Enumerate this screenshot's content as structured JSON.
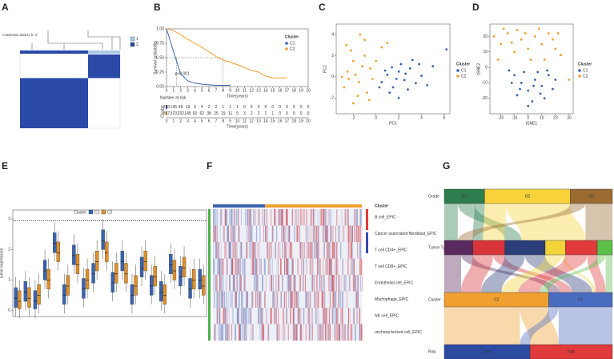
{
  "chart_data": [
    {
      "type": "heatmap",
      "panel": "A",
      "title": "consensus matrix k=2",
      "groups": [
        {
          "name": "1",
          "size": 32,
          "color": "#a9c8e8"
        },
        {
          "name": "2",
          "size": 68,
          "color": "#2b4aa8"
        }
      ],
      "matrix": [
        [
          1,
          0
        ],
        [
          0,
          1
        ]
      ]
    },
    {
      "type": "line",
      "panel": "B",
      "ylabel": "Survival probability",
      "xlabel": "Time(years)",
      "legend_title": "Cluster",
      "annotation": "p<0.001",
      "series": [
        {
          "name": "C1",
          "color": "#3a64b0",
          "x": [
            0,
            1,
            2,
            3,
            4,
            5,
            6,
            7,
            8,
            9
          ],
          "y": [
            1,
            0.6,
            0.22,
            0.1,
            0.06,
            0.04,
            0.03,
            0.02,
            0.02,
            0.02
          ]
        },
        {
          "name": "C2",
          "color": "#f0a030",
          "x": [
            0,
            1,
            2,
            3,
            4,
            5,
            6,
            7,
            8,
            9,
            10,
            11,
            12,
            13,
            14,
            15,
            16,
            17
          ],
          "y": [
            1,
            0.97,
            0.9,
            0.82,
            0.75,
            0.68,
            0.6,
            0.52,
            0.46,
            0.42,
            0.38,
            0.33,
            0.28,
            0.25,
            0.18,
            0.15,
            0.15,
            0.15
          ]
        }
      ],
      "xlim": [
        0,
        20
      ],
      "xticks": [
        0,
        1,
        2,
        3,
        4,
        5,
        6,
        7,
        8,
        9,
        10,
        11,
        12,
        13,
        14,
        15,
        16,
        17,
        18,
        19,
        20
      ],
      "ylim": [
        0,
        1
      ],
      "yticks": [
        {
          "value": 0,
          "label": "0.00"
        },
        {
          "value": 0.25,
          "label": "0.25"
        },
        {
          "value": 0.5,
          "label": "0.50"
        },
        {
          "value": 0.75,
          "label": "0.75"
        },
        {
          "value": 1,
          "label": "1.00"
        }
      ],
      "risk_table": {
        "title": "Number at risk",
        "ylabel": "Cluster",
        "xlabel": "Time(years)",
        "rows": [
          [
            240,
            145,
            49,
            19,
            9,
            4,
            2,
            2,
            1,
            1,
            1,
            0,
            0,
            0,
            0,
            0,
            0,
            0,
            0,
            0,
            0
          ],
          [
            367,
            323,
            232,
            145,
            92,
            62,
            38,
            25,
            19,
            11,
            5,
            3,
            2,
            2,
            1,
            1,
            0,
            0,
            0,
            0,
            0
          ]
        ]
      }
    },
    {
      "type": "scatter",
      "panel": "C",
      "xlabel": "PC1",
      "ylabel": "PC2",
      "legend_title": "Cluster",
      "xlim": [
        -3.5,
        6.5
      ],
      "xticks": [
        -2,
        0,
        2,
        4,
        6
      ],
      "ylim": [
        -3.5,
        5
      ],
      "yticks": [
        -2,
        0,
        2,
        4
      ],
      "series": [
        {
          "name": "C1",
          "color": "#3a64b0",
          "points": [
            [
              0.5,
              -0.5
            ],
            [
              1,
              0.2
            ],
            [
              1.5,
              -1
            ],
            [
              2,
              0.5
            ],
            [
              2.5,
              -0.3
            ],
            [
              3,
              0.8
            ],
            [
              3.5,
              -0.6
            ],
            [
              1.2,
              -1.5
            ],
            [
              2.2,
              1.2
            ],
            [
              4,
              0.1
            ],
            [
              0.8,
              0.6
            ],
            [
              1.8,
              -0.2
            ],
            [
              2.8,
              -1.2
            ],
            [
              3.2,
              1.6
            ],
            [
              4.5,
              -0.8
            ],
            [
              5,
              1
            ],
            [
              1.4,
              0.9
            ],
            [
              2.6,
              0.3
            ],
            [
              0.3,
              -1
            ],
            [
              6.2,
              2.6
            ],
            [
              3.8,
              1.2
            ],
            [
              2,
              -2
            ]
          ]
        },
        {
          "name": "C2",
          "color": "#f0a030",
          "points": [
            [
              -2.5,
              0.5
            ],
            [
              -2,
              1.5
            ],
            [
              -1.5,
              -0.5
            ],
            [
              -1,
              2
            ],
            [
              -2.8,
              -1
            ],
            [
              -2.2,
              2.5
            ],
            [
              -1.8,
              0.2
            ],
            [
              -0.8,
              -1.5
            ],
            [
              -0.5,
              0.8
            ],
            [
              -1.2,
              1
            ],
            [
              -2.6,
              3
            ],
            [
              -3,
              0
            ],
            [
              -1.6,
              -1.8
            ],
            [
              -0.3,
              -0.2
            ],
            [
              0,
              1.5
            ],
            [
              -2,
              -2.5
            ],
            [
              -1,
              3.5
            ],
            [
              -2.4,
              -0.2
            ],
            [
              0.5,
              2.8
            ],
            [
              -1.4,
              4
            ],
            [
              -0.6,
              -2.2
            ],
            [
              1,
              3.2
            ]
          ]
        }
      ]
    },
    {
      "type": "scatter",
      "panel": "D",
      "xlabel": "tSNE1",
      "ylabel": "tSNE2",
      "legend_title": "Cluster",
      "xlim": [
        -28,
        33
      ],
      "xticks": [
        -20,
        -10,
        0,
        10,
        20,
        30
      ],
      "ylim": [
        -30,
        28
      ],
      "yticks": [
        -20,
        -10,
        0,
        10,
        20
      ],
      "series": [
        {
          "name": "C1",
          "color": "#3a64b0",
          "points": [
            [
              -10,
              -5
            ],
            [
              -5,
              -10
            ],
            [
              0,
              -15
            ],
            [
              5,
              -8
            ],
            [
              10,
              -12
            ],
            [
              15,
              -5
            ],
            [
              -8,
              -18
            ],
            [
              3,
              -22
            ],
            [
              12,
              -20
            ],
            [
              -12,
              -10
            ],
            [
              18,
              -14
            ],
            [
              7,
              -3
            ],
            [
              -3,
              -3
            ],
            [
              0,
              -25
            ],
            [
              14,
              -2
            ],
            [
              -6,
              -14
            ],
            [
              9,
              -17
            ],
            [
              20,
              -8
            ],
            [
              -14,
              -2
            ],
            [
              4,
              -12
            ]
          ]
        },
        {
          "name": "C2",
          "color": "#f0a030",
          "points": [
            [
              -25,
              20
            ],
            [
              -20,
              15
            ],
            [
              -15,
              22
            ],
            [
              -10,
              10
            ],
            [
              -5,
              18
            ],
            [
              0,
              12
            ],
            [
              5,
              20
            ],
            [
              10,
              15
            ],
            [
              15,
              22
            ],
            [
              20,
              12
            ],
            [
              -22,
              5
            ],
            [
              -18,
              25
            ],
            [
              -8,
              24
            ],
            [
              2,
              5
            ],
            [
              8,
              25
            ],
            [
              18,
              18
            ],
            [
              24,
              8
            ],
            [
              -12,
              16
            ],
            [
              12,
              5
            ],
            [
              30,
              -8
            ],
            [
              -2,
              22
            ],
            [
              22,
              22
            ]
          ]
        }
      ]
    },
    {
      "type": "box",
      "panel": "E",
      "ylabel": "Gene expression",
      "legend_title": "Cluster",
      "ylim": [
        -0.2,
        3.3
      ],
      "yticks": [
        0,
        1,
        2,
        3
      ],
      "series": [
        {
          "name": "C1",
          "color": "#3a64b0",
          "values": [
            0.4,
            0.6,
            0.3,
            1.3,
            2.2,
            0.5,
            1.8,
            0.7,
            1.2,
            2.3,
            0.9,
            1.6,
            0.5,
            1.4,
            0.8,
            0.6,
            1.5,
            1.1,
            0.7,
            1.0
          ],
          "q1": [
            0.1,
            0.3,
            0.05,
            1.0,
            1.9,
            0.2,
            1.5,
            0.4,
            0.9,
            2.0,
            0.6,
            1.3,
            0.2,
            1.1,
            0.5,
            0.3,
            1.2,
            0.8,
            0.4,
            0.7
          ],
          "q3": [
            0.75,
            0.95,
            0.65,
            1.65,
            2.55,
            0.85,
            2.15,
            1.05,
            1.55,
            2.65,
            1.25,
            1.95,
            0.85,
            1.75,
            1.15,
            0.95,
            1.85,
            1.45,
            1.05,
            1.35
          ]
        },
        {
          "name": "C2",
          "color": "#e0902a",
          "values": [
            0.3,
            0.4,
            0.5,
            1.0,
            1.9,
            0.8,
            1.5,
            1.0,
            1.6,
            1.9,
            1.2,
            1.2,
            0.8,
            1.6,
            1.1,
            0.5,
            1.3,
            1.4,
            1.0,
            0.8
          ],
          "q1": [
            0.05,
            0.1,
            0.2,
            0.7,
            1.6,
            0.5,
            1.2,
            0.7,
            1.3,
            1.6,
            0.9,
            0.9,
            0.5,
            1.3,
            0.8,
            0.2,
            1.0,
            1.1,
            0.7,
            0.5
          ],
          "q3": [
            0.65,
            0.75,
            0.85,
            1.35,
            2.25,
            1.15,
            1.85,
            1.35,
            1.95,
            2.25,
            1.55,
            1.55,
            1.15,
            1.95,
            1.45,
            0.85,
            1.65,
            1.75,
            1.35,
            1.15
          ]
        }
      ]
    },
    {
      "type": "cellmap",
      "panel": "F",
      "legend_title": "Cluster",
      "rows": [
        "B cell_EPIC",
        "Cancer associated fibroblast_EPIC",
        "T cell CD4+_EPIC",
        "T cell CD8+_EPIC",
        "Endothelial cell_EPIC",
        "Macrophage_EPIC",
        "NK cell_EPIC",
        "uncharacterized cell_EPIC"
      ],
      "clusters": [
        {
          "name": "C1",
          "size": 35,
          "color": "#3a64b0"
        },
        {
          "name": "C2",
          "size": 65,
          "color": "#f0a030"
        }
      ]
    },
    {
      "type": "sankey",
      "panel": "G",
      "levels": [
        {
          "name": "Grade",
          "nodes": [
            {
              "label": "G1",
              "value": 24,
              "color": "#2e7d4f"
            },
            {
              "label": "G2",
              "value": 51,
              "color": "#f7d23a"
            },
            {
              "label": "G3",
              "value": 25,
              "color": "#9c6b32"
            }
          ]
        },
        {
          "name": "Tumor Type",
          "nodes": [
            {
              "value": 17,
              "color": "#5a2a5e"
            },
            {
              "value": 19,
              "color": "#d8343a"
            },
            {
              "value": 24,
              "color": "#2c3e7a"
            },
            {
              "value": 12,
              "color": "#f1d43a"
            },
            {
              "value": 19,
              "color": "#e03a3a"
            },
            {
              "value": 9,
              "color": "#5cbf4a"
            }
          ]
        },
        {
          "name": "Cluster",
          "nodes": [
            {
              "label": "C2",
              "value": 62,
              "color": "#f0a030"
            },
            {
              "label": "C1",
              "value": 38,
              "color": "#4a6cc0"
            }
          ]
        },
        {
          "name": "Risk",
          "nodes": [
            {
              "label": "low",
              "value": 51,
              "color": "#2c4aa0"
            },
            {
              "label": "high",
              "value": 49,
              "color": "#e03a3a"
            }
          ]
        }
      ],
      "flows": [
        [
          [
            0,
            0,
            8
          ],
          [
            0,
            2,
            10
          ],
          [
            0,
            1,
            6
          ],
          [
            1,
            1,
            13
          ],
          [
            1,
            2,
            14
          ],
          [
            1,
            3,
            12
          ],
          [
            1,
            4,
            12
          ],
          [
            2,
            0,
            9
          ],
          [
            2,
            4,
            7
          ],
          [
            2,
            5,
            9
          ]
        ],
        [
          [
            0,
            0,
            10
          ],
          [
            0,
            1,
            7
          ],
          [
            1,
            0,
            12
          ],
          [
            1,
            1,
            7
          ],
          [
            2,
            0,
            12
          ],
          [
            2,
            1,
            12
          ],
          [
            3,
            0,
            10
          ],
          [
            3,
            1,
            2
          ],
          [
            4,
            0,
            13
          ],
          [
            4,
            1,
            6
          ],
          [
            5,
            0,
            5
          ],
          [
            5,
            1,
            4
          ]
        ],
        [
          [
            0,
            0,
            45
          ],
          [
            0,
            1,
            17
          ],
          [
            1,
            0,
            6
          ],
          [
            1,
            1,
            32
          ]
        ]
      ]
    }
  ]
}
